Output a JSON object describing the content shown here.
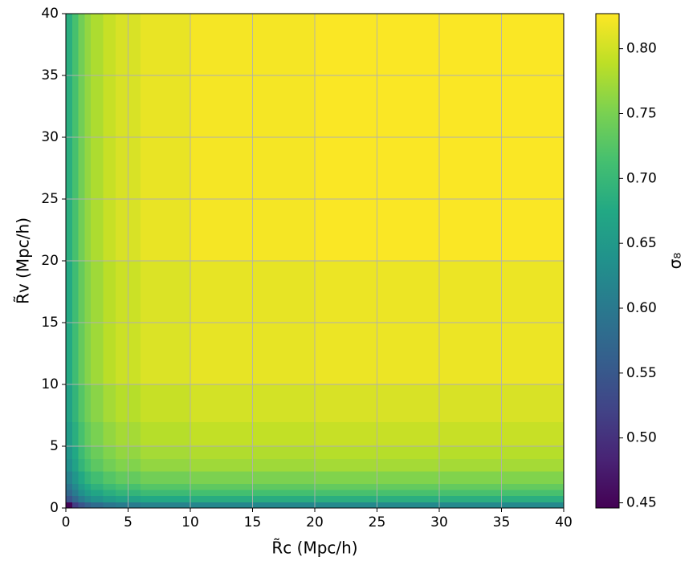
{
  "chart_data": {
    "type": "heatmap",
    "xlabel": "R̃c (Mpc/h)",
    "ylabel": "R̃v (Mpc/h)",
    "colorbar_label": "σ₈",
    "x_edges": [
      0,
      0.5,
      1,
      1.5,
      2,
      3,
      4,
      6,
      10,
      20,
      40
    ],
    "y_edges": [
      0,
      0.5,
      1,
      1.5,
      2,
      3,
      4,
      5,
      7,
      10,
      20,
      40
    ],
    "z": [
      [
        0.45,
        0.515,
        0.545,
        0.565,
        0.58,
        0.595,
        0.605,
        0.615,
        0.622,
        0.625
      ],
      [
        0.545,
        0.575,
        0.605,
        0.625,
        0.64,
        0.655,
        0.665,
        0.675,
        0.682,
        0.685
      ],
      [
        0.575,
        0.605,
        0.635,
        0.655,
        0.67,
        0.685,
        0.695,
        0.705,
        0.712,
        0.715
      ],
      [
        0.595,
        0.625,
        0.655,
        0.675,
        0.69,
        0.705,
        0.715,
        0.725,
        0.732,
        0.735
      ],
      [
        0.615,
        0.645,
        0.675,
        0.695,
        0.71,
        0.725,
        0.735,
        0.745,
        0.752,
        0.755
      ],
      [
        0.635,
        0.665,
        0.695,
        0.715,
        0.73,
        0.745,
        0.755,
        0.765,
        0.772,
        0.775
      ],
      [
        0.645,
        0.675,
        0.705,
        0.725,
        0.74,
        0.755,
        0.765,
        0.775,
        0.782,
        0.785
      ],
      [
        0.655,
        0.685,
        0.715,
        0.735,
        0.75,
        0.765,
        0.775,
        0.785,
        0.792,
        0.795
      ],
      [
        0.665,
        0.695,
        0.725,
        0.745,
        0.76,
        0.775,
        0.785,
        0.795,
        0.802,
        0.805
      ],
      [
        0.677,
        0.707,
        0.737,
        0.757,
        0.772,
        0.787,
        0.797,
        0.807,
        0.814,
        0.817
      ],
      [
        0.685,
        0.715,
        0.745,
        0.765,
        0.78,
        0.795,
        0.805,
        0.815,
        0.822,
        0.825
      ]
    ],
    "xlim": [
      0,
      40
    ],
    "ylim": [
      0,
      40
    ],
    "xticks": [
      0,
      5,
      10,
      15,
      20,
      25,
      30,
      35,
      40
    ],
    "yticks": [
      0,
      5,
      10,
      15,
      20,
      25,
      30,
      35,
      40
    ],
    "cmap": "viridis",
    "clim": [
      0.446,
      0.827
    ],
    "cticks": [
      0.45,
      {
        "value": 0.5,
        "label": "0.50"
      },
      0.55,
      {
        "value": 0.6,
        "label": "0.60"
      },
      0.65,
      {
        "value": 0.7,
        "label": "0.70"
      },
      0.75,
      {
        "value": 0.8,
        "label": "0.80"
      }
    ],
    "grid": true
  }
}
